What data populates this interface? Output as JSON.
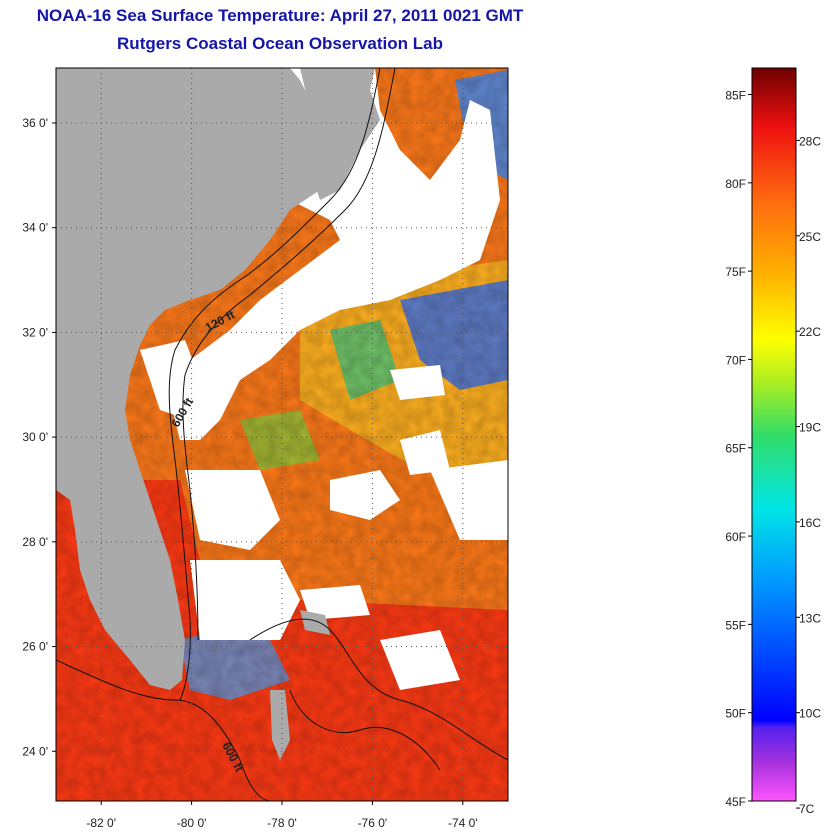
{
  "title": "NOAA-16 Sea Surface Temperature:  April 27, 2011 0021 GMT",
  "subtitle": "Rutgers Coastal Ocean Observation Lab",
  "map": {
    "lat_ticks": [
      {
        "value": 36,
        "label": "36 0'"
      },
      {
        "value": 34,
        "label": "34 0'"
      },
      {
        "value": 32,
        "label": "32 0'"
      },
      {
        "value": 30,
        "label": "30 0'"
      },
      {
        "value": 28,
        "label": "28 0'"
      },
      {
        "value": 26,
        "label": "26 0'"
      },
      {
        "value": 24,
        "label": "24 0'"
      }
    ],
    "lon_ticks": [
      {
        "value": -82,
        "label": "-82 0'"
      },
      {
        "value": -80,
        "label": "-80 0'"
      },
      {
        "value": -78,
        "label": "-78 0'"
      },
      {
        "value": -76,
        "label": "-76 0'"
      },
      {
        "value": -74,
        "label": "-74 0'"
      }
    ],
    "lat_range": [
      23.05,
      37.05
    ],
    "lon_range": [
      -83.0,
      -73.0
    ],
    "contour_labels": [
      "120 ft",
      "600 ft",
      "600 ft"
    ],
    "colors": {
      "land": "#aaaaaa",
      "cloud": "#ffffff",
      "warm": "#ff2a10",
      "mid": "#ff8c1a",
      "cool": "#2a4bff"
    }
  },
  "colorbar": {
    "fahrenheit": [
      {
        "value": 85,
        "label": "85F"
      },
      {
        "value": 80,
        "label": "80F"
      },
      {
        "value": 75,
        "label": "75F"
      },
      {
        "value": 70,
        "label": "70F"
      },
      {
        "value": 65,
        "label": "65F"
      },
      {
        "value": 60,
        "label": "60F"
      },
      {
        "value": 55,
        "label": "55F"
      },
      {
        "value": 50,
        "label": "50F"
      },
      {
        "value": 45,
        "label": "45F"
      }
    ],
    "celsius": [
      {
        "value": 28,
        "label": "28C"
      },
      {
        "value": 25,
        "label": "25C"
      },
      {
        "value": 22,
        "label": "22C"
      },
      {
        "value": 19,
        "label": "19C"
      },
      {
        "value": 16,
        "label": "16C"
      },
      {
        "value": 13,
        "label": "13C"
      },
      {
        "value": 10,
        "label": "10C"
      },
      {
        "value": 7,
        "label": "7C"
      }
    ],
    "range_f": [
      45,
      86.5
    ]
  }
}
